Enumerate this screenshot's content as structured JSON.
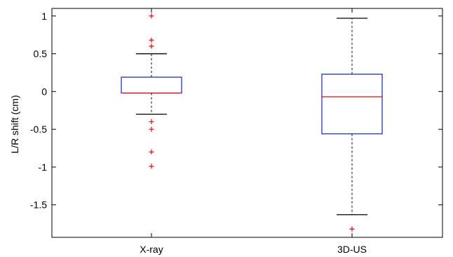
{
  "chart_data": {
    "type": "box",
    "categories": [
      "X-ray",
      "3D-US"
    ],
    "ylabel": "L/R shift (cm)",
    "xlabel": "",
    "ylim": [
      -1.93,
      1.1
    ],
    "y_ticks": [
      1,
      0.5,
      0,
      -0.5,
      -1,
      -1.5
    ],
    "y_tick_labels": [
      "1",
      "0.5",
      "0",
      "-0.5",
      "-1",
      "-1.5"
    ],
    "grid": false,
    "boxes": [
      {
        "category": "X-ray",
        "whisker_low": -0.3,
        "q1": -0.02,
        "median": -0.02,
        "q3": 0.19,
        "whisker_high": 0.5,
        "outliers": [
          1.0,
          0.68,
          0.6,
          -0.4,
          -0.5,
          -0.8,
          -0.99
        ]
      },
      {
        "category": "3D-US",
        "whisker_low": -1.63,
        "q1": -0.56,
        "median": -0.07,
        "q3": 0.23,
        "whisker_high": 0.97,
        "outliers": [
          -1.82
        ]
      }
    ],
    "colors": {
      "box": "#2233bb",
      "median": "#dd1111",
      "whisker": "#000000",
      "outlier": "#ee1111"
    }
  }
}
